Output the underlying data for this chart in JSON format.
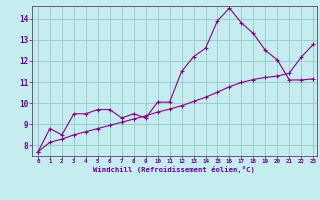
{
  "xlabel": "Windchill (Refroidissement éolien,°C)",
  "bg_color": "#c5ecee",
  "line_color": "#880088",
  "grid_color": "#99cccc",
  "text_color": "#660099",
  "spine_color": "#554466",
  "xlim": [
    -0.5,
    23.3
  ],
  "ylim": [
    7.5,
    14.6
  ],
  "xticks": [
    0,
    1,
    2,
    3,
    4,
    5,
    6,
    7,
    8,
    9,
    10,
    11,
    12,
    13,
    14,
    15,
    16,
    17,
    18,
    19,
    20,
    21,
    22,
    23
  ],
  "yticks": [
    8,
    9,
    10,
    11,
    12,
    13,
    14
  ],
  "line1_x": [
    0,
    1,
    2,
    3,
    4,
    5,
    6,
    7,
    8,
    9,
    10,
    11,
    12,
    13,
    14,
    15,
    16,
    17,
    18,
    19,
    20,
    21,
    22,
    23
  ],
  "line1_y": [
    7.7,
    8.8,
    8.5,
    9.5,
    9.5,
    9.7,
    9.7,
    9.3,
    9.5,
    9.3,
    10.05,
    10.05,
    11.5,
    12.2,
    12.6,
    13.9,
    14.5,
    13.8,
    13.3,
    12.5,
    12.05,
    11.1,
    11.1,
    11.15
  ],
  "line2_x": [
    0,
    1,
    2,
    3,
    4,
    5,
    6,
    7,
    8,
    9,
    10,
    11,
    12,
    13,
    14,
    15,
    16,
    17,
    18,
    19,
    20,
    21,
    22,
    23
  ],
  "line2_y": [
    7.7,
    8.15,
    8.3,
    8.5,
    8.65,
    8.8,
    8.95,
    9.1,
    9.25,
    9.4,
    9.58,
    9.72,
    9.88,
    10.08,
    10.28,
    10.52,
    10.78,
    10.98,
    11.12,
    11.22,
    11.28,
    11.42,
    12.18,
    12.78
  ]
}
